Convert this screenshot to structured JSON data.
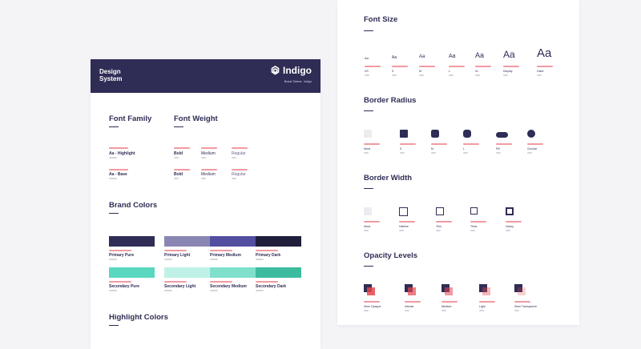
{
  "header": {
    "title": "Design System",
    "brand_name": "Indigo",
    "brand_sub": "Brand Tokens · Indigo"
  },
  "font_family": {
    "title": "Font Family",
    "items": [
      "Aa - Highlight",
      "Aa - Base"
    ]
  },
  "font_weight": {
    "title": "Font Weight",
    "rows": [
      [
        "Bold",
        "Medium",
        "Regular"
      ],
      [
        "Bold",
        "Medium",
        "Regular"
      ]
    ]
  },
  "brand_colors": {
    "title": "Brand Colors",
    "row1": [
      {
        "label": "Primary Pure",
        "color": "#2f2d55"
      },
      {
        "label": "Primary Light",
        "color": "#8a86b3"
      },
      {
        "label": "Primary Medium",
        "color": "#534ea0"
      },
      {
        "label": "Primary Dark",
        "color": "#1f1e3b"
      }
    ],
    "row2": [
      {
        "label": "Secondary Pure",
        "color": "#5ad7bf"
      },
      {
        "label": "Secondary Light",
        "color": "#bff1e7"
      },
      {
        "label": "Secondary Medium",
        "color": "#7fe0cc"
      },
      {
        "label": "Secondary Dark",
        "color": "#3dbb9e"
      }
    ]
  },
  "highlight_colors": {
    "title": "Highlight Colors"
  },
  "font_size": {
    "title": "Font Size",
    "samples": [
      {
        "sample": "Aa",
        "label": "XS"
      },
      {
        "sample": "Aa",
        "label": "S"
      },
      {
        "sample": "Aa",
        "label": "M"
      },
      {
        "sample": "Aa",
        "label": "L"
      },
      {
        "sample": "Aa",
        "label": "XL"
      },
      {
        "sample": "Aa",
        "label": "Display"
      },
      {
        "sample": "Aa",
        "label": "Giant"
      }
    ]
  },
  "border_radius": {
    "title": "Border Radius",
    "items": [
      "None",
      "S",
      "M",
      "L",
      "Pill",
      "Circular"
    ]
  },
  "border_width": {
    "title": "Border Width",
    "items": [
      "None",
      "Hairline",
      "Thin",
      "Thick",
      "Heavy"
    ]
  },
  "opacity_levels": {
    "title": "Opacity Levels",
    "items": [
      "Semi Opaque",
      "Intense",
      "Medium",
      "Light",
      "Semi Transparent"
    ]
  },
  "colors": {
    "indigo": "#2f2d55",
    "accent_red": "#e6464f",
    "label_pink": "#f19aa2"
  }
}
